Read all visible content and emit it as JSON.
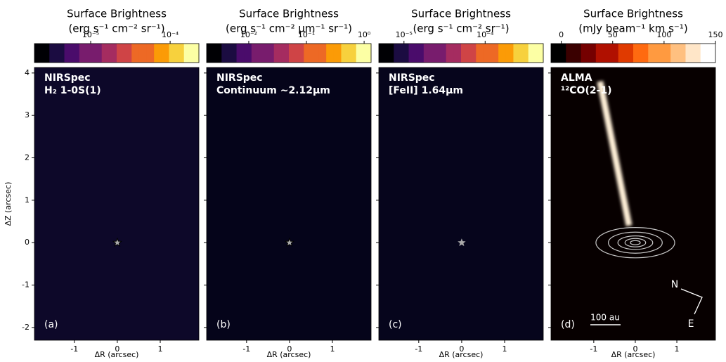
{
  "chart_data": [
    {
      "type": "image",
      "colorbar_title": "Surface Brightness",
      "colorbar_units": "(erg s⁻¹ cm⁻² sr⁻¹)",
      "colormap": "inferno",
      "log": true,
      "clim": [
        1.96e-06,
        0.00023
      ],
      "cticks": [
        {
          "value": 1e-05,
          "label": "10⁻⁵"
        },
        {
          "value": 0.0001,
          "label": "10⁻⁴"
        }
      ],
      "labels": [
        "NIRSpec",
        "H₂ 1-0S(1)"
      ],
      "panel_label": "(a)",
      "star": [
        0,
        0
      ],
      "xlim": [
        -1.93,
        1.9
      ],
      "xticks": [
        -1,
        0,
        1
      ],
      "ylim": [
        -2.3,
        4.13
      ],
      "yticks": [
        -2,
        -1,
        0,
        1,
        2,
        3,
        4
      ],
      "xlabel": "ΔR (arcsec)",
      "ylabel": "ΔZ (arcsec)",
      "ytick_labels": true
    },
    {
      "type": "image",
      "colorbar_title": "Surface Brightness",
      "colorbar_units": "(erg s⁻¹ cm⁻² μm⁻¹ sr⁻¹)",
      "colormap": "inferno",
      "log": true,
      "clim": [
        0.00186,
        1.32
      ],
      "cticks": [
        {
          "value": 0.01,
          "label": "10⁻²"
        },
        {
          "value": 0.1,
          "label": "10⁻¹"
        },
        {
          "value": 1,
          "label": "10⁰"
        }
      ],
      "labels": [
        "NIRSpec",
        "Continuum ~2.12μm"
      ],
      "panel_label": "(b)",
      "star": [
        0,
        0
      ],
      "xlim": [
        -1.93,
        1.9
      ],
      "xticks": [
        -1,
        0,
        1
      ],
      "ylim": [
        -2.3,
        4.13
      ],
      "yticks": [
        -2,
        -1,
        0,
        1,
        2,
        3,
        4
      ],
      "xlabel": "ΔR (arcsec)",
      "ytick_labels": false
    },
    {
      "type": "image",
      "colorbar_title": "Surface Brightness",
      "colorbar_units": "(erg s⁻¹ cm⁻² sr⁻¹)",
      "colormap": "inferno",
      "log": true,
      "clim": [
        4.9e-06,
        0.00052
      ],
      "cticks": [
        {
          "value": 1e-05,
          "label": "10⁻⁵"
        },
        {
          "value": 0.0001,
          "label": "10⁻⁴"
        }
      ],
      "labels": [
        "NIRSpec",
        "[FeII] 1.64μm"
      ],
      "panel_label": "(c)",
      "star": [
        0,
        0
      ],
      "xlim": [
        -1.93,
        1.9
      ],
      "xticks": [
        -1,
        0,
        1
      ],
      "ylim": [
        -2.3,
        4.13
      ],
      "yticks": [
        -2,
        -1,
        0,
        1,
        2,
        3,
        4
      ],
      "xlabel": "ΔR (arcsec)",
      "ytick_labels": false
    },
    {
      "type": "image",
      "colorbar_title": "Surface Brightness",
      "colorbar_units": "(mJy beam⁻¹ km s⁻¹)",
      "colormap": "heat",
      "log": false,
      "clim": [
        -10,
        150
      ],
      "cticks": [
        0,
        50,
        100,
        150
      ],
      "labels": [
        "ALMA",
        "¹²CO(2-1)"
      ],
      "panel_label": "(d)",
      "scalebar_label": "100 au",
      "compass": [
        "N",
        "E"
      ],
      "xlim": [
        -2.03,
        1.93
      ],
      "xticks": [
        -1,
        0,
        1
      ],
      "ylim": [
        -2.3,
        4.13
      ],
      "yticks": [
        -2,
        -1,
        0,
        1,
        2,
        3,
        4
      ],
      "xlabel": "ΔR (arcsec)",
      "ytick_labels": false
    }
  ]
}
